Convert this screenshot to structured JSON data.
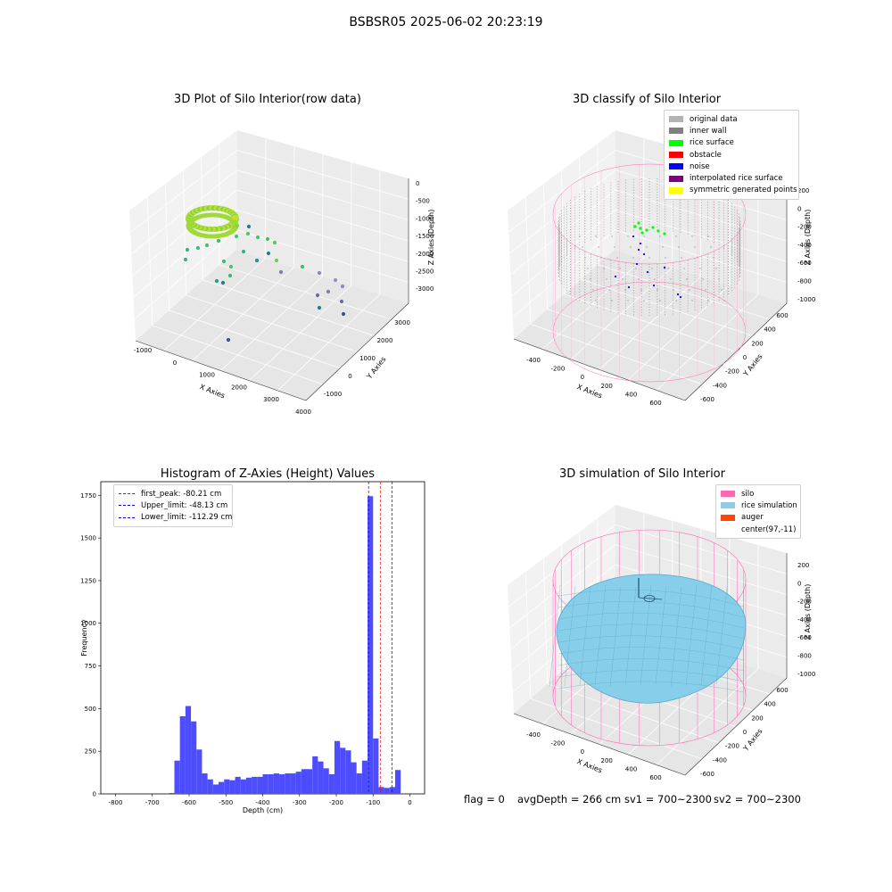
{
  "suptitle": "BSBSR05 2025-06-02 20:23:19",
  "colors": {
    "histogram_bar": "#4d4dff",
    "first_peak": "#ff0000",
    "upper_limit": "#0000ff",
    "lower_limit": "#0000ff",
    "wall_points": "#808080",
    "silo_wireframe": "#ff69b4",
    "rice_fill": "#87ceeb",
    "noise": "#0000ff",
    "rice_surface": "#00ff00"
  },
  "chart_data": [
    {
      "type": "scatter",
      "subtype": "3d",
      "title": "3D Plot of Silo Interior(row data)",
      "xlabel": "X Axies",
      "ylabel": "Y Axies",
      "zlabel": "Z Axies (Depth)",
      "x_ticks": [
        "-1000",
        "0",
        "1000",
        "2000",
        "3000",
        "4000"
      ],
      "y_ticks": [
        "-1000",
        "0",
        "1000",
        "2000",
        "3000"
      ],
      "z_ticks": [
        "0",
        "-500",
        "-1000",
        "-1500",
        "-2000",
        "-2500",
        "-3000"
      ],
      "colormap": "viridis",
      "grid": true
    },
    {
      "type": "scatter",
      "subtype": "3d",
      "title": "3D classify of Silo Interior",
      "xlabel": "X Axies",
      "ylabel": "Y Axies",
      "zlabel": "Z Axies (Depth)",
      "x_ticks": [
        "-400",
        "-200",
        "0",
        "200",
        "400",
        "600"
      ],
      "y_ticks": [
        "-600",
        "-400",
        "-200",
        "0",
        "200",
        "400",
        "600"
      ],
      "z_ticks": [
        "200",
        "0",
        "-200",
        "-400",
        "-600",
        "-800",
        "-1000"
      ],
      "legend": [
        {
          "label": "original data",
          "color": "#b3b3b3"
        },
        {
          "label": "inner wall",
          "color": "#808080"
        },
        {
          "label": "rice surface",
          "color": "#00ff00"
        },
        {
          "label": "obstacle",
          "color": "#ff0000"
        },
        {
          "label": "noise",
          "color": "#0000ff"
        },
        {
          "label": "interpolated rice surface",
          "color": "#800080"
        },
        {
          "label": "symmetric generated points",
          "color": "#ffff00"
        }
      ],
      "legend_position": "top-right",
      "grid": true
    },
    {
      "type": "bar",
      "subtype": "histogram",
      "title": "Histogram of Z-Axies (Height) Values",
      "xlabel": "Depth (cm)",
      "ylabel": "Frequency",
      "xlim": [
        -840,
        40
      ],
      "ylim": [
        0,
        1830
      ],
      "x_ticks": [
        -800,
        -700,
        -600,
        -500,
        -400,
        -300,
        -200,
        -100,
        0
      ],
      "y_ticks": [
        0,
        250,
        500,
        750,
        1000,
        1250,
        1500,
        1750
      ],
      "bin_width": 15,
      "bins": [
        [
          -655,
          5
        ],
        [
          -640,
          195
        ],
        [
          -625,
          455
        ],
        [
          -610,
          515
        ],
        [
          -595,
          425
        ],
        [
          -580,
          260
        ],
        [
          -565,
          120
        ],
        [
          -550,
          85
        ],
        [
          -535,
          55
        ],
        [
          -520,
          70
        ],
        [
          -505,
          85
        ],
        [
          -490,
          80
        ],
        [
          -475,
          100
        ],
        [
          -460,
          85
        ],
        [
          -445,
          95
        ],
        [
          -430,
          100
        ],
        [
          -415,
          100
        ],
        [
          -400,
          115
        ],
        [
          -385,
          115
        ],
        [
          -370,
          120
        ],
        [
          -355,
          115
        ],
        [
          -340,
          120
        ],
        [
          -325,
          120
        ],
        [
          -310,
          130
        ],
        [
          -295,
          145
        ],
        [
          -280,
          145
        ],
        [
          -265,
          220
        ],
        [
          -250,
          190
        ],
        [
          -235,
          150
        ],
        [
          -220,
          115
        ],
        [
          -205,
          310
        ],
        [
          -190,
          270
        ],
        [
          -175,
          255
        ],
        [
          -160,
          185
        ],
        [
          -145,
          120
        ],
        [
          -130,
          195
        ],
        [
          -115,
          1745
        ],
        [
          -100,
          325
        ],
        [
          -85,
          40
        ],
        [
          -70,
          35
        ],
        [
          -55,
          40
        ],
        [
          -40,
          140
        ]
      ],
      "vlines": [
        {
          "label": "first_peak: -80.21 cm",
          "x": -80.21,
          "color": "#ff0000"
        },
        {
          "label": "Upper_limit: -48.13 cm",
          "x": -48.13,
          "color": "#0000ff"
        },
        {
          "label": "Lower_limit: -112.29 cm",
          "x": -112.29,
          "color": "#0000ff"
        }
      ],
      "legend_position": "top-left",
      "grid": false
    },
    {
      "type": "scatter",
      "subtype": "3d-surface",
      "title": "3D simulation of Silo Interior",
      "xlabel": "X Axies",
      "ylabel": "Y Axies",
      "zlabel": "Z Axies (Depth)",
      "x_ticks": [
        "-400",
        "-200",
        "0",
        "200",
        "400",
        "600"
      ],
      "y_ticks": [
        "-600",
        "-400",
        "-200",
        "0",
        "200",
        "400",
        "600"
      ],
      "z_ticks": [
        "200",
        "0",
        "-200",
        "-400",
        "-600",
        "-800",
        "-1000"
      ],
      "legend": [
        {
          "label": "silo",
          "color": "#ff69b4"
        },
        {
          "label": "rice simulation",
          "color": "#87ceeb"
        },
        {
          "label": "auger",
          "color": "#ff4500"
        },
        {
          "label": "center(97,-11)",
          "color": "#ffffff"
        }
      ],
      "legend_position": "top-right",
      "grid": true
    }
  ],
  "footer": {
    "flag": "flag = 0",
    "avg_depth": "avgDepth = 266 cm",
    "sv1": "sv1 = 700~2300",
    "sv2": "sv2 = 700~2300"
  }
}
